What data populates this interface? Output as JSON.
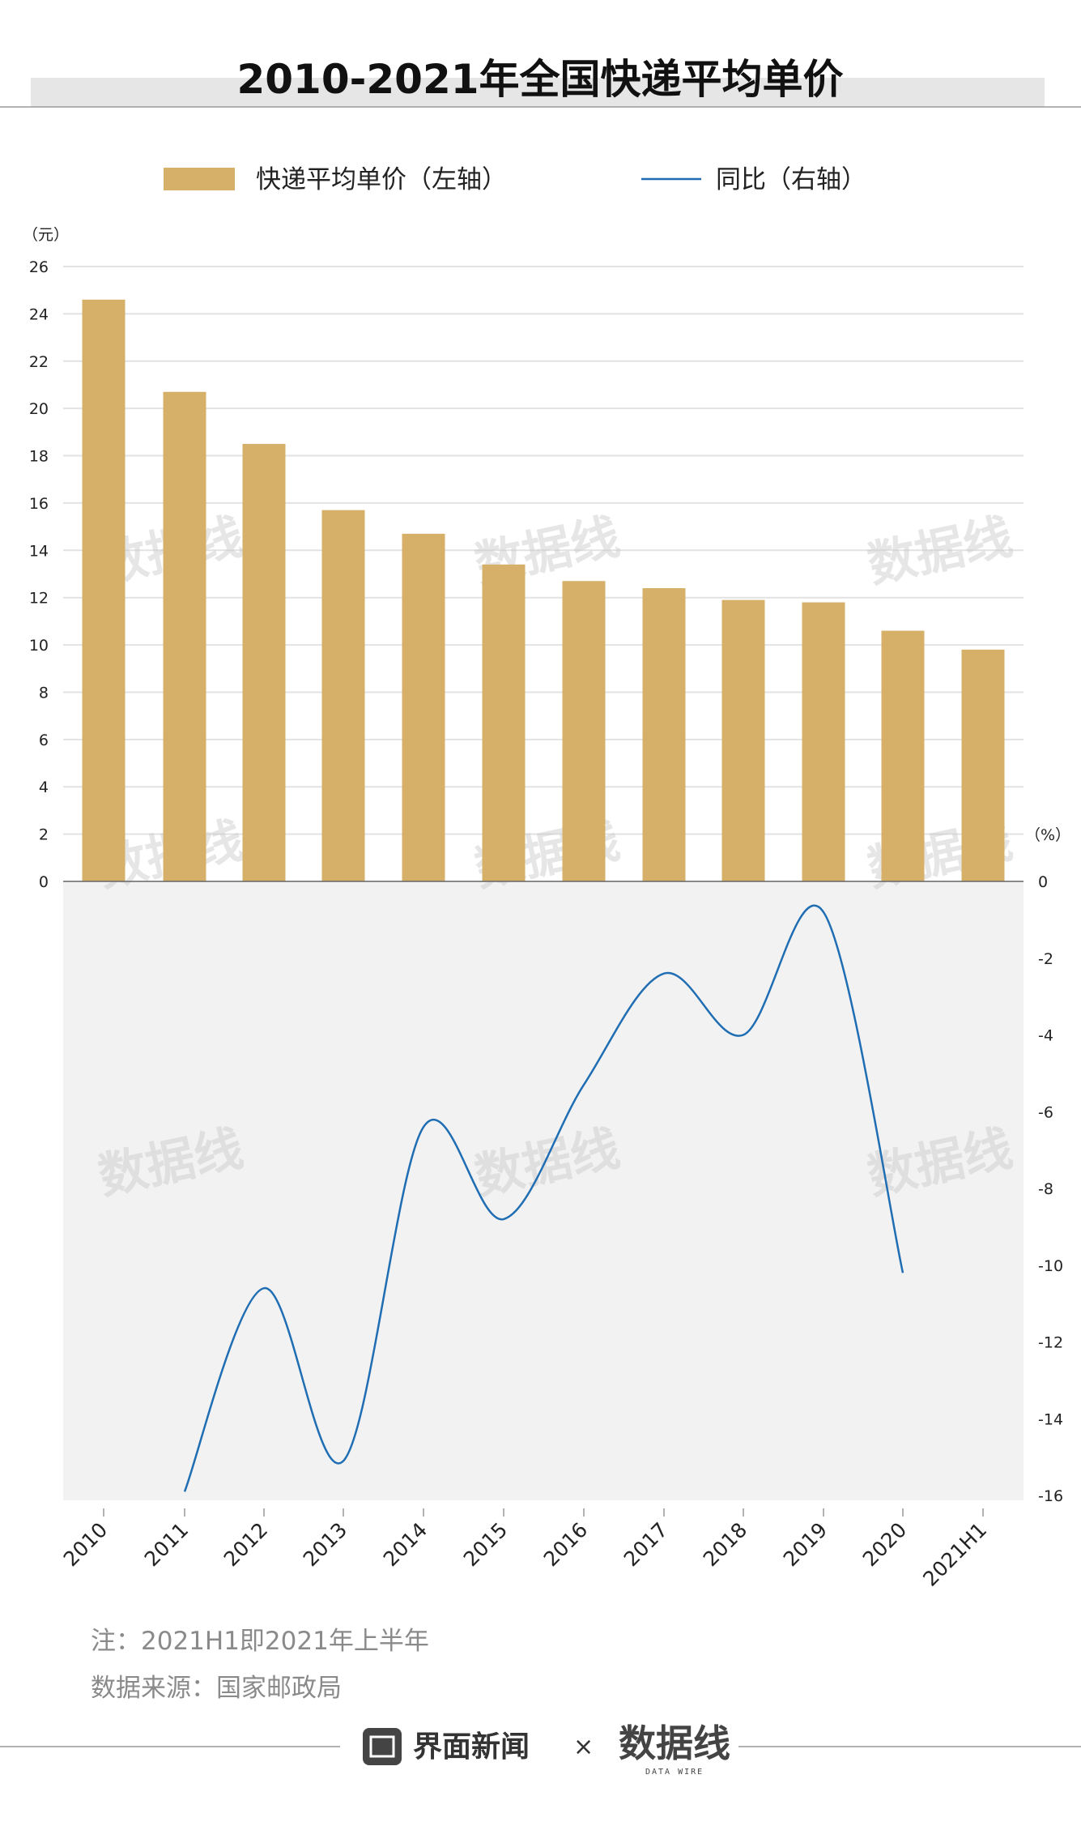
{
  "title": "2010-2021年全国快递平均单价",
  "legend": {
    "bar_label": "快递平均单价（左轴）",
    "line_label": "同比（右轴）"
  },
  "left_unit": "（元）",
  "right_unit": "（%）",
  "note": "注：2021H1即2021年上半年",
  "source": "数据来源：国家邮政局",
  "footer": {
    "brand": "界面新闻",
    "separator": "×",
    "partner": "数据线",
    "partner_sub": "DATA WIRE"
  },
  "watermark": "数据线",
  "colors": {
    "bar": "#d6b068",
    "line": "#1f6db3",
    "lower_panel_bg": "#f2f2f2",
    "title_band": "#e6e6e6"
  },
  "chart_data": {
    "type": "bar",
    "categories": [
      "2010",
      "2011",
      "2012",
      "2013",
      "2014",
      "2015",
      "2016",
      "2017",
      "2018",
      "2019",
      "2020",
      "2021H1"
    ],
    "series": [
      {
        "name": "快递平均单价（左轴）",
        "type": "bar",
        "axis": "left",
        "values": [
          24.6,
          20.7,
          18.5,
          15.7,
          14.7,
          13.4,
          12.7,
          12.4,
          11.9,
          11.8,
          10.6,
          9.8
        ]
      },
      {
        "name": "同比（右轴）",
        "type": "line",
        "smooth": true,
        "axis": "right",
        "values": [
          null,
          -15.9,
          -10.6,
          -15.1,
          -6.4,
          -8.8,
          -5.3,
          -2.4,
          -4.0,
          -0.8,
          -10.2,
          null
        ]
      }
    ],
    "left_axis": {
      "ylim": [
        0,
        26
      ],
      "ticks": [
        "26",
        "24",
        "22",
        "20",
        "18",
        "16",
        "14",
        "12",
        "10",
        "8",
        "6",
        "4",
        "2",
        "0"
      ]
    },
    "right_axis": {
      "ylim": [
        -16,
        0
      ],
      "ticks": [
        "0",
        "-2",
        "-4",
        "-6",
        "-8",
        "-10",
        "-12",
        "-14",
        "-16"
      ]
    },
    "grid": true,
    "legend_position": "top"
  }
}
